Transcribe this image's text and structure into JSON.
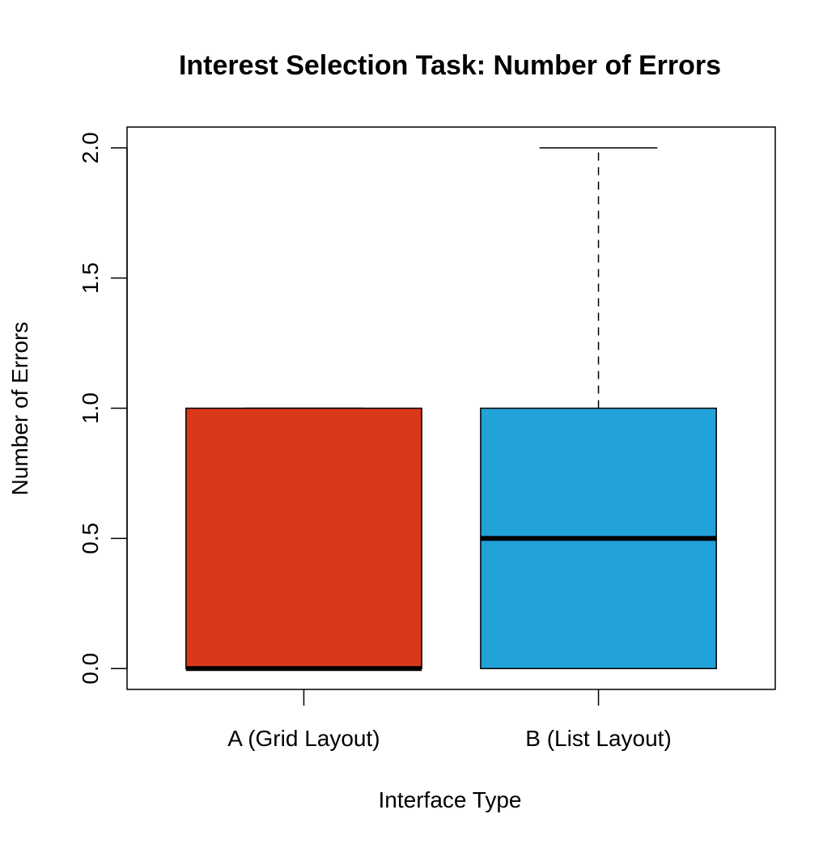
{
  "chart_data": {
    "type": "boxplot",
    "title": "Interest Selection Task: Number of Errors",
    "xlabel": "Interface Type",
    "ylabel": "Number of Errors",
    "categories": [
      "A (Grid Layout)",
      "B (List Layout)"
    ],
    "ylim": [
      -0.08,
      2.08
    ],
    "yticks": [
      0,
      0.5,
      1,
      1.5,
      2
    ],
    "ytick_labels": [
      "0.0",
      "0.5",
      "1.0",
      "1.5",
      "2.0"
    ],
    "grid": false,
    "legend": "none",
    "boxes": [
      {
        "category": "A (Grid Layout)",
        "min": 0,
        "q1": 0,
        "median": 0,
        "q3": 1,
        "max": 1,
        "color": "#D9381A"
      },
      {
        "category": "B (List Layout)",
        "min": 0,
        "q1": 0,
        "median": 0.5,
        "q3": 1,
        "max": 2,
        "color": "#21A2D9"
      }
    ]
  }
}
